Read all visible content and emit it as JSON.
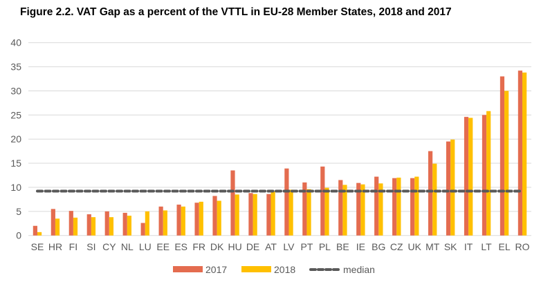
{
  "chart_data": {
    "type": "bar",
    "title": "Figure 2.2. VAT Gap as a percent of the VTTL in EU-28 Member States, 2018 and 2017",
    "xlabel": "",
    "ylabel": "",
    "ylim": [
      0,
      40
    ],
    "yticks": [
      0,
      5,
      10,
      15,
      20,
      25,
      30,
      35,
      40
    ],
    "grid": true,
    "legend_position": "bottom",
    "categories": [
      "SE",
      "HR",
      "FI",
      "SI",
      "CY",
      "NL",
      "LU",
      "EE",
      "ES",
      "FR",
      "DK",
      "HU",
      "DE",
      "AT",
      "LV",
      "PT",
      "PL",
      "BE",
      "IE",
      "BG",
      "CZ",
      "UK",
      "MT",
      "SK",
      "IT",
      "LT",
      "EL",
      "RO"
    ],
    "series": [
      {
        "name": "2017",
        "color": "#E46C4F",
        "values": [
          2.0,
          5.5,
          5.1,
          4.4,
          5.0,
          4.7,
          2.6,
          6.0,
          6.4,
          6.8,
          8.2,
          13.5,
          8.8,
          8.6,
          13.9,
          11.0,
          14.3,
          11.5,
          10.9,
          12.2,
          11.9,
          11.9,
          17.5,
          19.5,
          24.6,
          25.0,
          33.0,
          34.2
        ]
      },
      {
        "name": "2018",
        "color": "#FFC000",
        "values": [
          0.7,
          3.5,
          3.7,
          3.8,
          3.8,
          4.1,
          5.0,
          5.2,
          6.0,
          7.0,
          7.2,
          8.5,
          8.6,
          9.2,
          9.5,
          9.6,
          9.9,
          10.5,
          10.6,
          10.8,
          12.0,
          12.2,
          14.9,
          19.9,
          24.4,
          25.8,
          30.0,
          33.8
        ]
      },
      {
        "name": "median",
        "type": "line",
        "style": "dashed",
        "color": "#595959",
        "value": 9.2
      }
    ]
  }
}
